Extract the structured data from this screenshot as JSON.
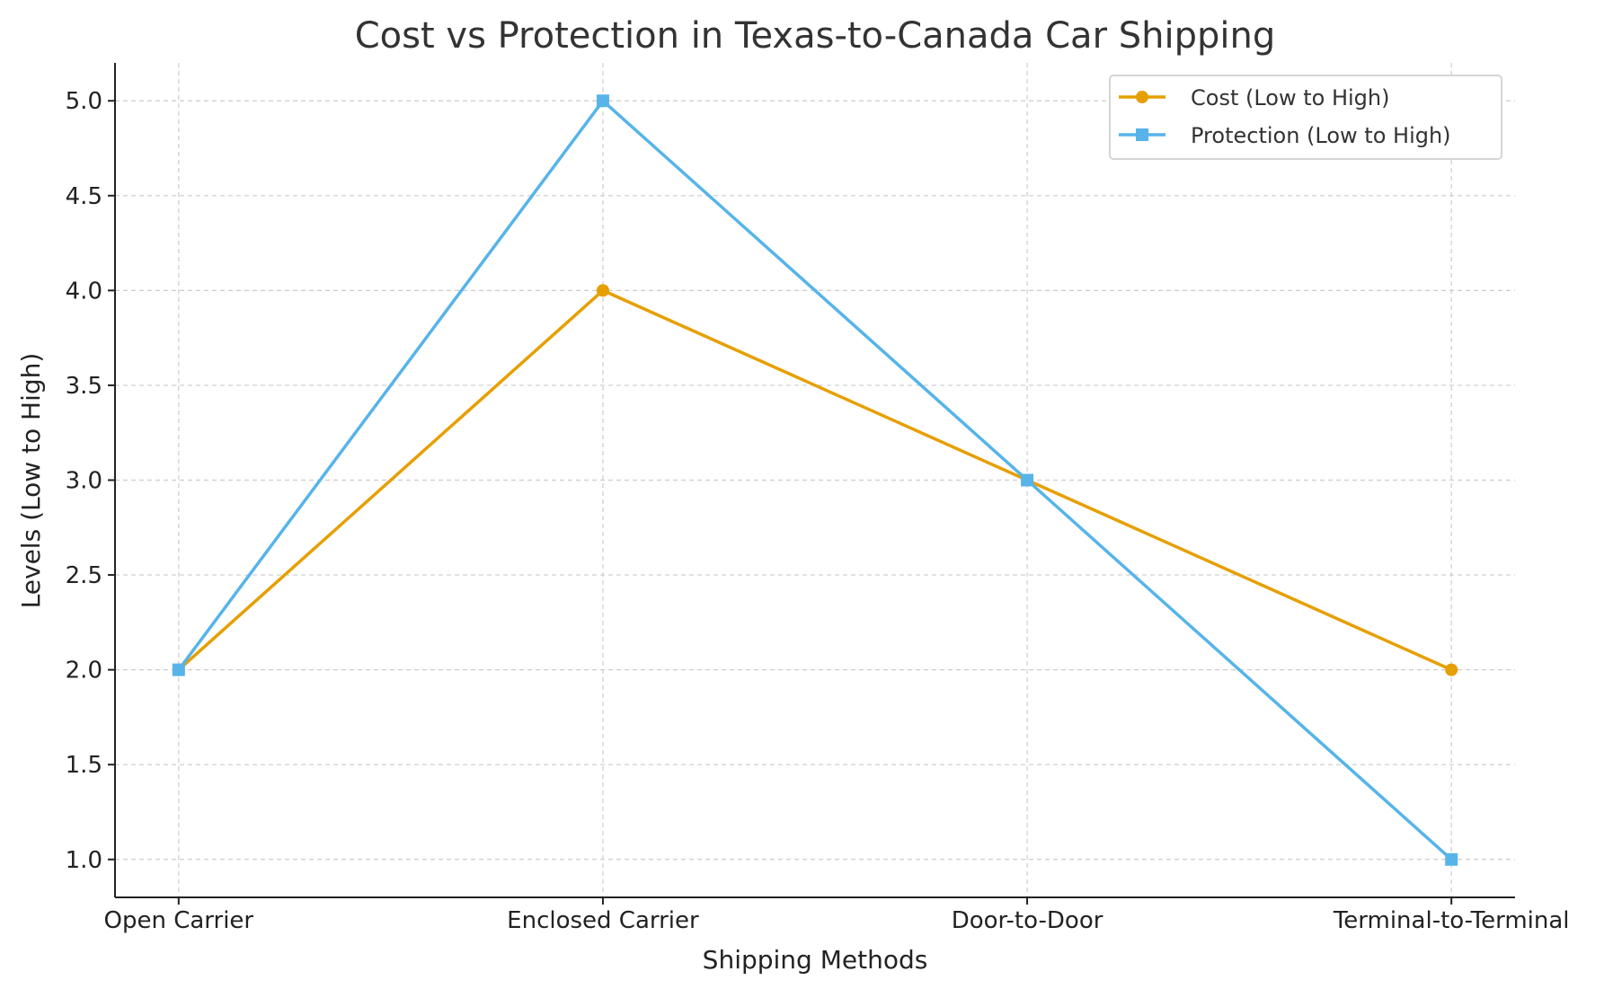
{
  "chart_data": {
    "type": "line",
    "title": "Cost vs Protection in Texas-to-Canada Car Shipping",
    "xlabel": "Shipping Methods",
    "ylabel": "Levels (Low to High)",
    "categories": [
      "Open Carrier",
      "Enclosed Carrier",
      "Door-to-Door",
      "Terminal-to-Terminal"
    ],
    "ylim": [
      0.8,
      5.2
    ],
    "yticks": [
      "1.0",
      "1.5",
      "2.0",
      "2.5",
      "3.0",
      "3.5",
      "4.0",
      "4.5",
      "5.0"
    ],
    "grid": true,
    "legend_position": "top-right",
    "series": [
      {
        "name": "Cost (Low to High)",
        "values": [
          2,
          4,
          3,
          2
        ],
        "color": "#E69F00",
        "marker": "circle"
      },
      {
        "name": "Protection (Low to High)",
        "values": [
          2,
          5,
          3,
          1
        ],
        "color": "#56B4E9",
        "marker": "square"
      }
    ]
  }
}
